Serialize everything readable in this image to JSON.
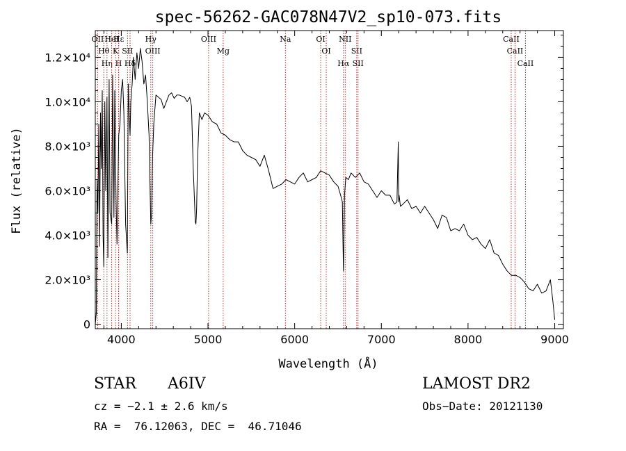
{
  "chart_data": {
    "type": "line",
    "title": "spec-56262-GAC078N47V2_sp10-073.fits",
    "xlabel": "Wavelength (Å)",
    "ylabel": "Flux (relative)",
    "xlim": [
      3700,
      9100
    ],
    "ylim": [
      -200,
      13200
    ],
    "x_ticks": [
      4000,
      5000,
      6000,
      7000,
      8000,
      9000
    ],
    "x_tick_labels": [
      "4000",
      "5000",
      "6000",
      "7000",
      "8000",
      "9000"
    ],
    "y_ticks": [
      0,
      2000,
      4000,
      6000,
      8000,
      10000,
      12000
    ],
    "y_tick_labels": [
      "0",
      "2.0×10³",
      "4.0×10³",
      "6.0×10³",
      "8.0×10³",
      "1.0×10⁴",
      "1.2×10⁴"
    ],
    "series": [
      {
        "x": [
          3700,
          3712,
          3720,
          3730,
          3740,
          3750,
          3760,
          3770,
          3780,
          3790,
          3798,
          3810,
          3820,
          3835,
          3845,
          3860,
          3870,
          3889,
          3900,
          3915,
          3925,
          3940,
          3950,
          3970,
          3985,
          4000,
          4015,
          4030,
          4050,
          4070,
          4080,
          4090,
          4101,
          4110,
          4125,
          4140,
          4160,
          4180,
          4200,
          4220,
          4240,
          4260,
          4280,
          4300,
          4320,
          4330,
          4340,
          4350,
          4360,
          4375,
          4400,
          4430,
          4460,
          4490,
          4520,
          4550,
          4580,
          4610,
          4640,
          4670,
          4700,
          4730,
          4760,
          4790,
          4810,
          4830,
          4845,
          4853,
          4861,
          4869,
          4880,
          4900,
          4930,
          4960,
          5000,
          5050,
          5100,
          5150,
          5200,
          5250,
          5300,
          5350,
          5400,
          5450,
          5500,
          5550,
          5600,
          5650,
          5700,
          5750,
          5800,
          5850,
          5900,
          5950,
          6000,
          6050,
          6100,
          6150,
          6200,
          6250,
          6300,
          6350,
          6400,
          6450,
          6500,
          6530,
          6550,
          6558,
          6563,
          6568,
          6575,
          6590,
          6620,
          6650,
          6700,
          6750,
          6800,
          6850,
          6900,
          6950,
          7000,
          7050,
          7100,
          7150,
          7180,
          7195,
          7200,
          7205,
          7220,
          7250,
          7300,
          7350,
          7400,
          7450,
          7500,
          7550,
          7600,
          7650,
          7700,
          7750,
          7800,
          7850,
          7900,
          7950,
          8000,
          8050,
          8100,
          8150,
          8200,
          8250,
          8300,
          8350,
          8400,
          8450,
          8500,
          8550,
          8600,
          8650,
          8700,
          8750,
          8800,
          8850,
          8900,
          8950,
          8980,
          9000
        ],
        "y": [
          0,
          500,
          6500,
          5000,
          9000,
          3500,
          9500,
          7000,
          10500,
          4000,
          2600,
          10000,
          6000,
          10200,
          3000,
          11000,
          5000,
          4500,
          11200,
          4800,
          10500,
          5500,
          3600,
          8500,
          9000,
          10500,
          11000,
          9500,
          4500,
          3200,
          10800,
          9500,
          8500,
          10000,
          10800,
          12000,
          11000,
          12200,
          11500,
          12400,
          11800,
          10800,
          11200,
          10000,
          8500,
          6500,
          4500,
          5000,
          7500,
          9000,
          10300,
          10200,
          10100,
          9700,
          10000,
          10300,
          10400,
          10150,
          10300,
          10300,
          10250,
          10200,
          10000,
          10200,
          9800,
          7000,
          5500,
          4600,
          4500,
          5200,
          7500,
          9500,
          9200,
          9500,
          9400,
          9100,
          9000,
          8600,
          8500,
          8300,
          8200,
          8200,
          7800,
          7600,
          7500,
          7400,
          7100,
          7600,
          6900,
          6100,
          6200,
          6300,
          6500,
          6400,
          6300,
          6600,
          6800,
          6400,
          6500,
          6600,
          6900,
          6800,
          6700,
          6400,
          6200,
          5800,
          5500,
          3500,
          2400,
          3500,
          5800,
          6600,
          6500,
          6800,
          6600,
          6800,
          6400,
          6300,
          6000,
          5700,
          6000,
          5800,
          5800,
          5400,
          5500,
          8200,
          5500,
          5800,
          5300,
          5400,
          5600,
          5200,
          5300,
          5000,
          5300,
          5000,
          4700,
          4300,
          4900,
          4800,
          4200,
          4300,
          4200,
          4500,
          4000,
          3800,
          3900,
          3600,
          3400,
          3800,
          3200,
          3100,
          2700,
          2400,
          2200,
          2200,
          2100,
          1900,
          1600,
          1500,
          1800,
          1400,
          1500,
          2000,
          1000,
          200
        ]
      }
    ],
    "line_markers": [
      {
        "label": "Hθ",
        "x": 3798
      },
      {
        "label": "OII",
        "x": 3727
      },
      {
        "label": "Hη",
        "x": 3835
      },
      {
        "label": "K",
        "x": 3934
      },
      {
        "label": "H",
        "x": 3969
      },
      {
        "label": "HeI",
        "x": 3889
      },
      {
        "label": "Hε",
        "x": 3970
      },
      {
        "label": "SII",
        "x": 4072
      },
      {
        "label": "Hδ",
        "x": 4101
      },
      {
        "label": "Hγ",
        "x": 4340
      },
      {
        "label": "OIII",
        "x": 4363
      },
      {
        "label": "OIII",
        "x": 5007
      },
      {
        "label": "Mg",
        "x": 5175
      },
      {
        "label": "Na",
        "x": 5893
      },
      {
        "label": "OI",
        "x": 6300
      },
      {
        "label": "OI",
        "x": 6364
      },
      {
        "label": "Hα",
        "x": 6563
      },
      {
        "label": "NII",
        "x": 6583
      },
      {
        "label": "SII",
        "x": 6716
      },
      {
        "label": "SII",
        "x": 6731
      },
      {
        "label": "CaII",
        "x": 8498
      },
      {
        "label": "CaII",
        "x": 8542
      },
      {
        "label": "CaII",
        "x": 8662
      }
    ]
  },
  "info": {
    "object_type": "STAR",
    "subclass": "A6IV",
    "survey": "LAMOST DR2",
    "cz": "cz = −2.1 ± 2.6 km/s",
    "obs_date": "Obs−Date: 20121130",
    "coords": "RA =  76.12063, DEC =  46.71046"
  },
  "colors": {
    "spectrum": "#000000",
    "marker_line": "#b03030",
    "background": "#ffffff"
  }
}
